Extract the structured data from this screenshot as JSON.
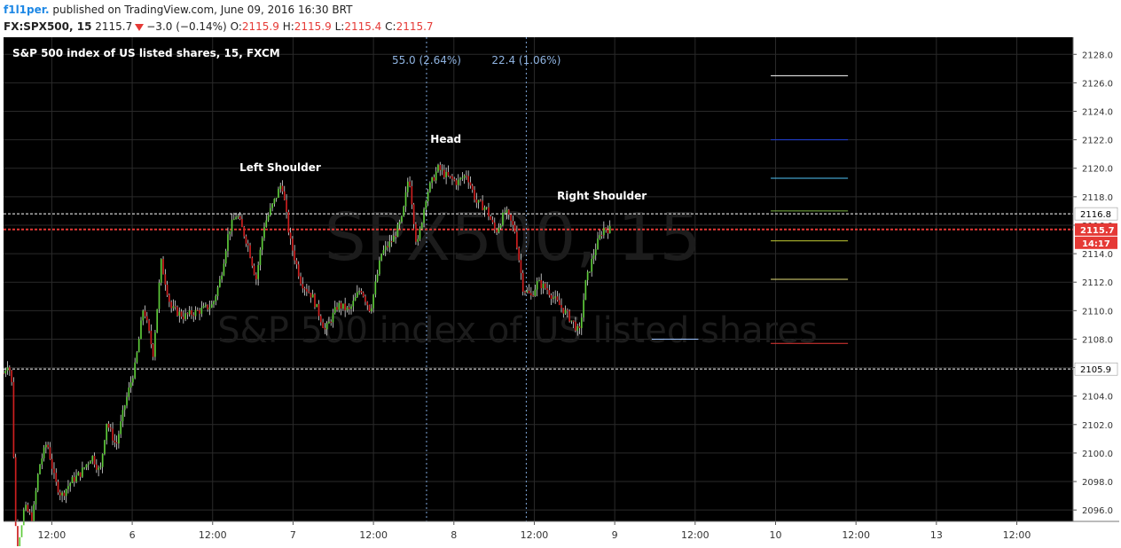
{
  "header": {
    "author": "f1l1per.",
    "published": "published on TradingView.com, June 09, 2016 16:30 BRT",
    "symbol": "FX:SPX500, 15",
    "last": "2115.7",
    "change": "−3.0 (−0.14%)",
    "o_label": "O:",
    "o": "2115.9",
    "h_label": "H:",
    "h": "2115.9",
    "l_label": "L:",
    "l": "2115.4",
    "c_label": "C:",
    "c": "2115.7"
  },
  "chart_data": {
    "type": "candlestick",
    "title": "S&P 500 index of US listed shares, 15, FXCM",
    "watermark_symbol": "SPX500, 15",
    "watermark_name": "S&P 500 index of US listed shares",
    "ylim": [
      2095.2,
      2129.2
    ],
    "y_ticks": [
      2096.0,
      2098.0,
      2100.0,
      2102.0,
      2104.0,
      2106.0,
      2108.0,
      2110.0,
      2112.0,
      2114.0,
      2116.0,
      2118.0,
      2120.0,
      2122.0,
      2124.0,
      2126.0,
      2128.0
    ],
    "y_tick_labels": [
      "2096.0",
      "2098.0",
      "2100.0",
      "2102.0",
      "2104.0",
      "2106.0",
      "2108.0",
      "2110.0",
      "2112.0",
      "2114.0",
      "2116.0",
      "2118.0",
      "2120.0",
      "2122.0",
      "2124.0",
      "2126.0",
      "2128.0"
    ],
    "x_tick_labels": [
      "12:00",
      "6",
      "12:00",
      "7",
      "12:00",
      "8",
      "12:00",
      "9",
      "12:00",
      "10",
      "12:00",
      "13",
      "12:00"
    ],
    "x_tick_times": [
      0.5,
      1.0,
      1.5,
      2.0,
      2.5,
      3.0,
      3.5,
      4.0,
      4.5,
      5.0,
      5.5,
      6.0,
      6.5
    ],
    "xlim": [
      0.2,
      6.85
    ],
    "price_path": [
      [
        0.2,
        2105.6
      ],
      [
        0.23,
        2106.4
      ],
      [
        0.25,
        2105.0
      ],
      [
        0.28,
        2093.0
      ],
      [
        0.33,
        2096.2
      ],
      [
        0.38,
        2095.4
      ],
      [
        0.42,
        2099.0
      ],
      [
        0.47,
        2100.8
      ],
      [
        0.52,
        2098.0
      ],
      [
        0.56,
        2097.0
      ],
      [
        0.62,
        2098.0
      ],
      [
        0.68,
        2098.6
      ],
      [
        0.75,
        2099.8
      ],
      [
        0.8,
        2098.6
      ],
      [
        0.84,
        2102.2
      ],
      [
        0.9,
        2100.5
      ],
      [
        0.95,
        2103.2
      ],
      [
        1.02,
        2106.2
      ],
      [
        1.07,
        2110.3
      ],
      [
        1.13,
        2107.0
      ],
      [
        1.18,
        2113.4
      ],
      [
        1.24,
        2110.2
      ],
      [
        1.32,
        2109.6
      ],
      [
        1.42,
        2110.0
      ],
      [
        1.5,
        2110.4
      ],
      [
        1.55,
        2112.3
      ],
      [
        1.6,
        2115.6
      ],
      [
        1.65,
        2116.8
      ],
      [
        1.72,
        2114.6
      ],
      [
        1.77,
        2112.2
      ],
      [
        1.82,
        2116.0
      ],
      [
        1.88,
        2117.6
      ],
      [
        1.93,
        2119.0
      ],
      [
        1.98,
        2115.0
      ],
      [
        2.05,
        2112.0
      ],
      [
        2.12,
        2111.0
      ],
      [
        2.2,
        2108.6
      ],
      [
        2.28,
        2110.4
      ],
      [
        2.35,
        2110.0
      ],
      [
        2.42,
        2111.6
      ],
      [
        2.48,
        2110.0
      ],
      [
        2.55,
        2114.0
      ],
      [
        2.62,
        2115.0
      ],
      [
        2.68,
        2116.5
      ],
      [
        2.72,
        2119.6
      ],
      [
        2.77,
        2114.4
      ],
      [
        2.83,
        2118.2
      ],
      [
        2.9,
        2120.0
      ],
      [
        2.96,
        2119.4
      ],
      [
        3.02,
        2119.0
      ],
      [
        3.08,
        2119.6
      ],
      [
        3.14,
        2117.6
      ],
      [
        3.2,
        2117.2
      ],
      [
        3.26,
        2115.5
      ],
      [
        3.32,
        2117.0
      ],
      [
        3.38,
        2115.6
      ],
      [
        3.43,
        2111.6
      ],
      [
        3.48,
        2111.0
      ],
      [
        3.52,
        2112.0
      ],
      [
        3.58,
        2111.5
      ],
      [
        3.64,
        2110.6
      ],
      [
        3.7,
        2109.8
      ],
      [
        3.75,
        2109.0
      ],
      [
        3.78,
        2108.4
      ],
      [
        3.82,
        2112.0
      ],
      [
        3.88,
        2114.4
      ],
      [
        3.93,
        2115.8
      ],
      [
        3.97,
        2115.7
      ]
    ],
    "annotations": [
      {
        "label": "Left Shoulder",
        "x": 1.92,
        "y": 2119.8
      },
      {
        "label": "Head",
        "x": 2.95,
        "y": 2121.8
      },
      {
        "label": "Right Shoulder",
        "x": 3.92,
        "y": 2117.8
      }
    ],
    "measurements": [
      {
        "label": "55.0 (2.64%)",
        "x": 2.83
      },
      {
        "label": "22.4 (1.06%)",
        "x": 3.45
      }
    ],
    "horizontal_levels": [
      {
        "value": 2116.8,
        "color": "#ffffff",
        "label": "2116.8",
        "style": "dashed",
        "tag_bg": "#ffffff",
        "tag_fg": "#000000"
      },
      {
        "value": 2115.7,
        "color": "#e53935",
        "label": "2115.7",
        "style": "dotted",
        "tag_bg": "#e53935",
        "tag_fg": "#ffffff"
      },
      {
        "value": 2105.9,
        "color": "#ffffff",
        "label": "2105.9",
        "style": "dashed",
        "tag_bg": "#ffffff",
        "tag_fg": "#000000"
      }
    ],
    "countdown": "14:17",
    "neckline": {
      "x1": 4.23,
      "x2": 4.52,
      "y": 2108.0
    },
    "target_lines": [
      {
        "value": 2126.5,
        "color": "#ffffff"
      },
      {
        "value": 2122.0,
        "color": "#1e3fd6"
      },
      {
        "value": 2119.3,
        "color": "#4fc3f7"
      },
      {
        "value": 2117.0,
        "color": "#7cb342"
      },
      {
        "value": 2114.9,
        "color": "#c0ca33"
      },
      {
        "value": 2112.2,
        "color": "#e6e07a"
      },
      {
        "value": 2107.7,
        "color": "#e53935"
      }
    ],
    "target_x_range": [
      4.97,
      5.45
    ],
    "grid": true,
    "colors": {
      "background": "#000000",
      "up": "#5ecb3a",
      "down": "#cc1f1f",
      "grid": "#2a2a2a"
    }
  }
}
